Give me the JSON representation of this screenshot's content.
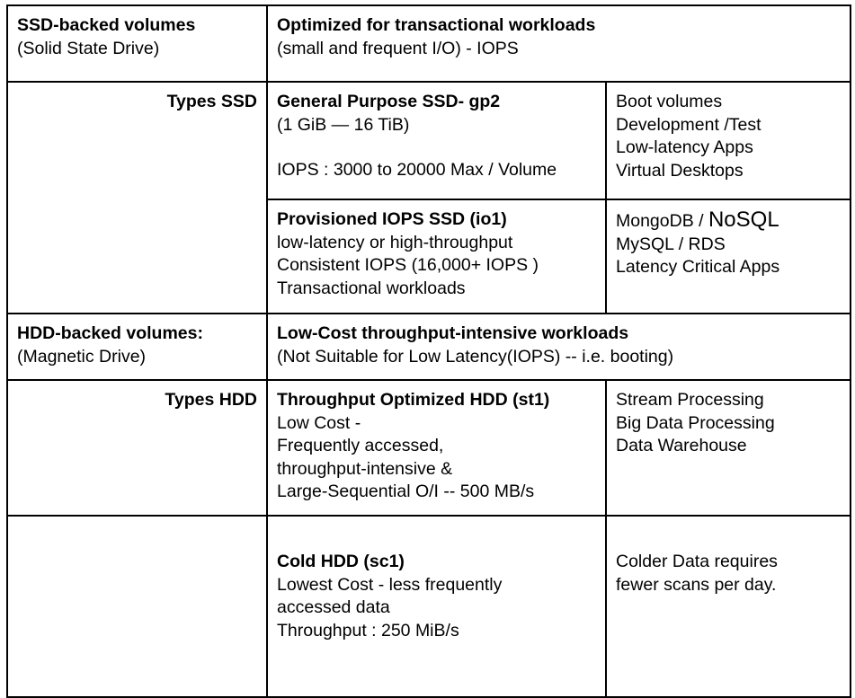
{
  "rows": {
    "ssd_header": {
      "title": "SSD-backed volumes",
      "subtitle": "(Solid State Drive)",
      "desc_title": "Optimized for transactional workloads",
      "desc_sub": "(small and frequent I/O) - IOPS"
    },
    "types_ssd_label": "Types SSD",
    "gp2": {
      "title": "General Purpose SSD- gp2",
      "range": "(1 GiB — 16 TiB)",
      "iops": "IOPS : 3000 to 20000 Max / Volume",
      "uses": [
        "Boot volumes",
        "Development /Test",
        "Low-latency Apps",
        "Virtual Desktops"
      ]
    },
    "io1": {
      "title": "Provisioned IOPS SSD (io1)",
      "lines": [
        "low-latency or high-throughput",
        "Consistent IOPS (16,000+  IOPS )",
        "Transactional workloads"
      ],
      "uses_1a": "MongoDB / ",
      "uses_1b": "NoSQL",
      "uses": [
        "MySQL / RDS",
        "Latency Critical Apps"
      ]
    },
    "hdd_header": {
      "title": "HDD-backed volumes:",
      "subtitle": "(Magnetic Drive)",
      "desc_title": "Low-Cost throughput-intensive workloads",
      "desc_sub": "(Not Suitable for Low Latency(IOPS) -- i.e. booting)"
    },
    "types_hdd_label": "Types HDD",
    "st1": {
      "title": "Throughput Optimized HDD (st1)",
      "lines": [
        "Low Cost -",
        "Frequently accessed,",
        "throughput-intensive &",
        "Large-Sequential O/I -- 500 MB/s"
      ],
      "uses": [
        "Stream Processing",
        "Big Data Processing",
        "Data Warehouse"
      ]
    },
    "sc1": {
      "title": "Cold HDD (sc1)",
      "lines": [
        "Lowest Cost - less frequently",
        "accessed data",
        "Throughput : 250 MiB/s"
      ],
      "uses": [
        "Colder Data requires",
        "fewer scans per day."
      ]
    }
  }
}
